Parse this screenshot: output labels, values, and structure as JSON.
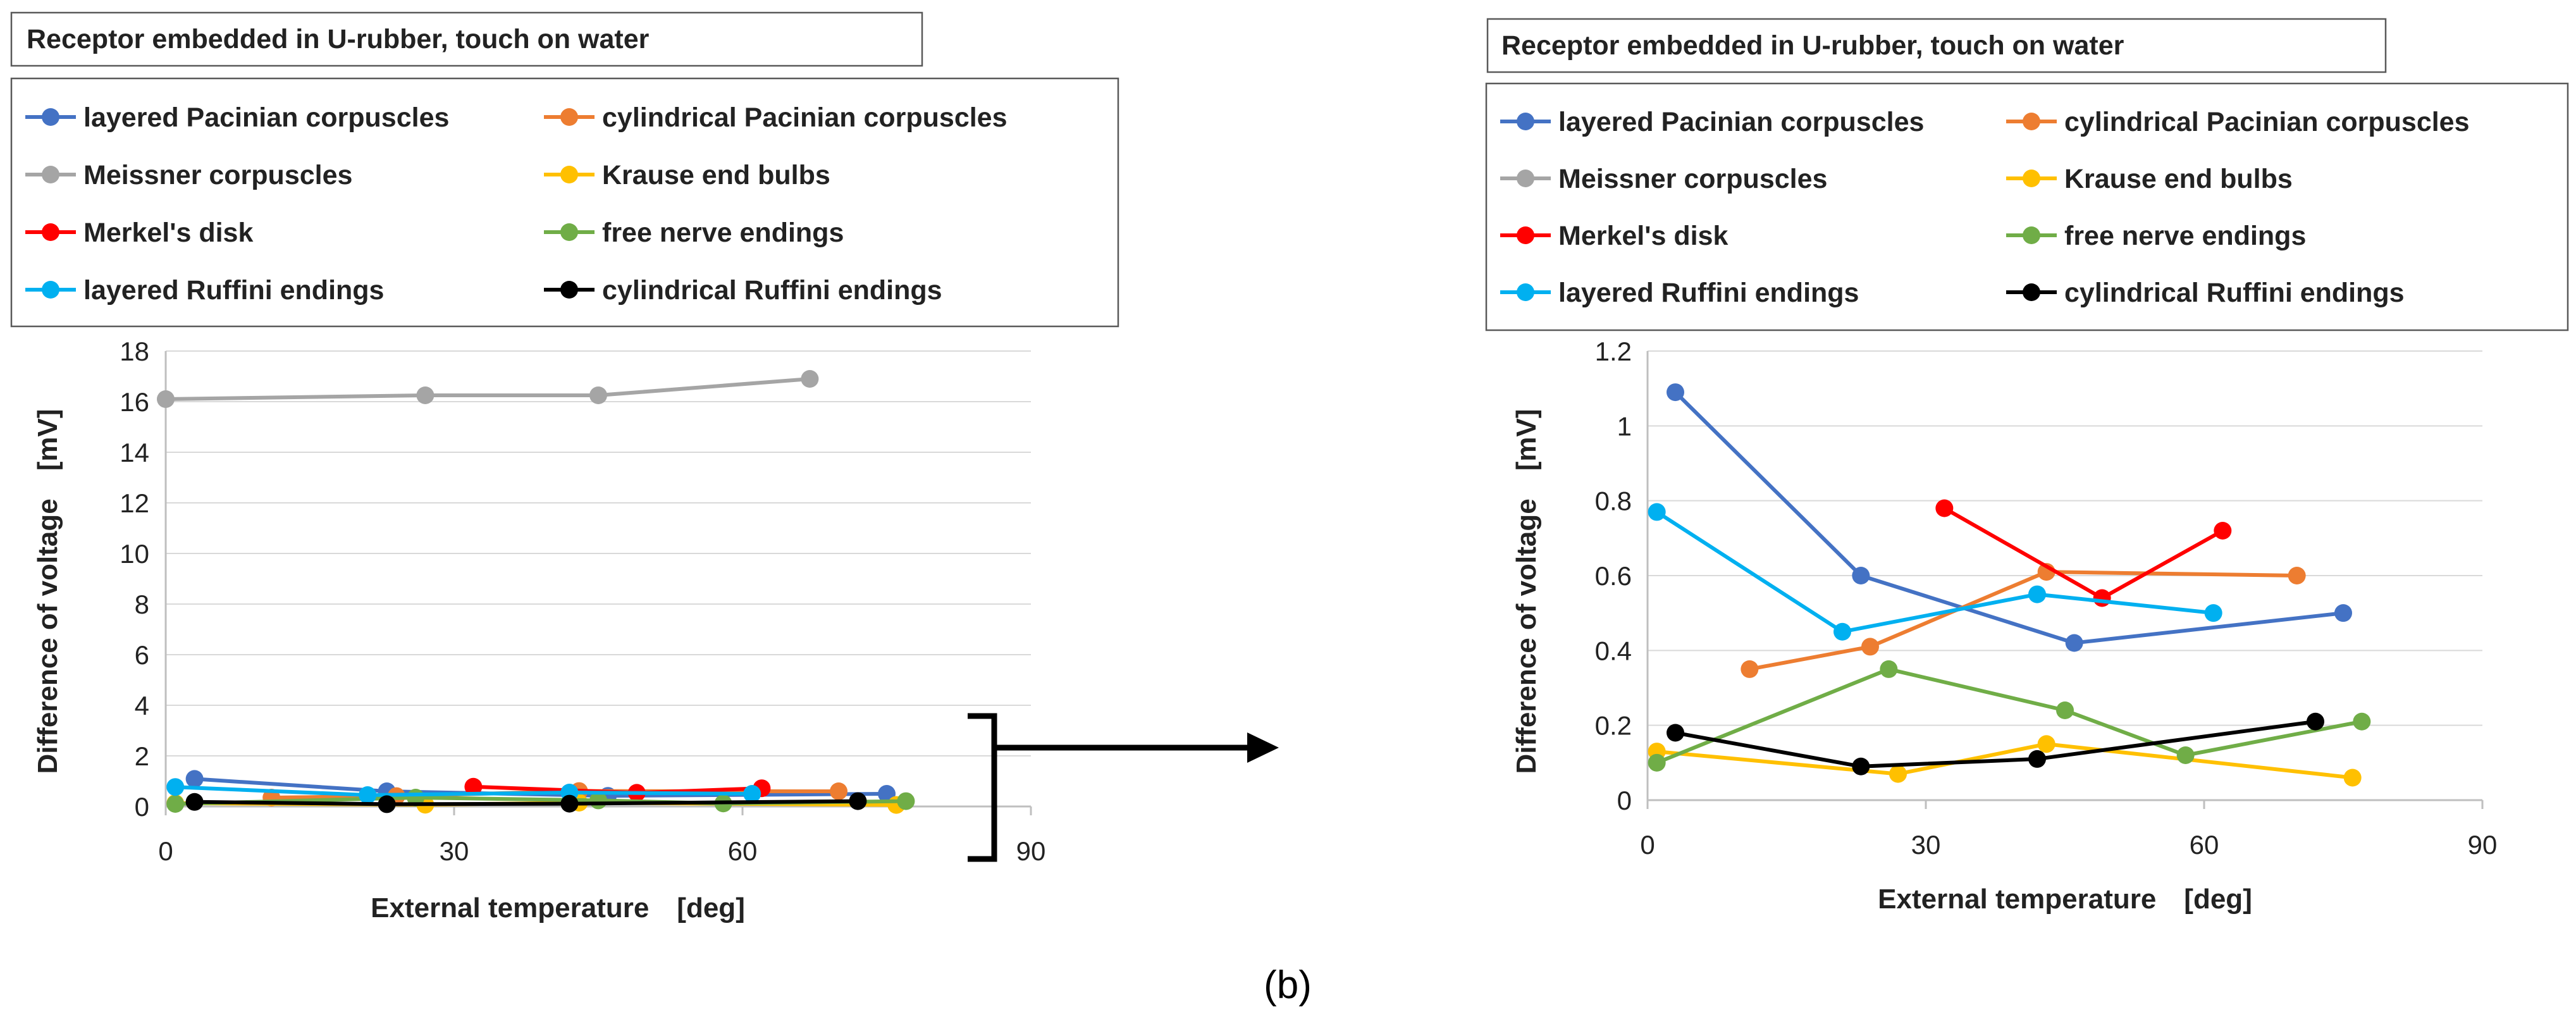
{
  "caption": "(b)",
  "colors": {
    "layered_pacinian": "#4472C4",
    "cylindrical_pacinian": "#ED7D31",
    "meissner": "#A5A5A5",
    "krause": "#FFC000",
    "merkel": "#FF0000",
    "free_nerve": "#70AD47",
    "layered_ruffini": "#00B0F0",
    "cylindrical_ruffini": "#000000"
  },
  "chart_data": [
    {
      "type": "line",
      "title": "Receptor embedded in U-rubber, touch on water",
      "xlabel": "External temperature　[deg]",
      "ylabel": "Difference of voltage　[mV]",
      "xlim": [
        0,
        90
      ],
      "ylim": [
        0,
        18
      ],
      "xticks": [
        "0",
        "30",
        "60",
        "90"
      ],
      "yticks": [
        "0",
        "2",
        "4",
        "6",
        "8",
        "10",
        "12",
        "14",
        "16",
        "18"
      ],
      "legend_position": "top",
      "series": [
        {
          "name": "layered Pacinian corpuscles",
          "color": "#4472C4",
          "x": [
            3,
            23,
            46,
            75
          ],
          "y": [
            1.09,
            0.6,
            0.42,
            0.5
          ]
        },
        {
          "name": "cylindrical Pacinian corpuscles",
          "color": "#ED7D31",
          "x": [
            11,
            24,
            43,
            70
          ],
          "y": [
            0.35,
            0.41,
            0.61,
            0.6
          ]
        },
        {
          "name": "Meissner corpuscles",
          "color": "#A5A5A5",
          "x": [
            0,
            27,
            45,
            67
          ],
          "y": [
            16.1,
            16.25,
            16.25,
            16.9
          ]
        },
        {
          "name": "Krause end bulbs",
          "color": "#FFC000",
          "x": [
            1,
            27,
            43,
            76
          ],
          "y": [
            0.13,
            0.07,
            0.15,
            0.06
          ]
        },
        {
          "name": "Merkel's disk",
          "color": "#FF0000",
          "x": [
            32,
            49,
            62
          ],
          "y": [
            0.78,
            0.54,
            0.72
          ]
        },
        {
          "name": "free nerve endings",
          "color": "#70AD47",
          "x": [
            1,
            26,
            45,
            58,
            77
          ],
          "y": [
            0.1,
            0.35,
            0.24,
            0.12,
            0.21
          ]
        },
        {
          "name": "layered Ruffini endings",
          "color": "#00B0F0",
          "x": [
            1,
            21,
            42,
            61
          ],
          "y": [
            0.77,
            0.45,
            0.55,
            0.5
          ]
        },
        {
          "name": "cylindrical Ruffini endings",
          "color": "#000000",
          "x": [
            3,
            23,
            42,
            72
          ],
          "y": [
            0.18,
            0.09,
            0.11,
            0.21
          ]
        }
      ]
    },
    {
      "type": "line",
      "title": "Receptor embedded in U-rubber, touch on water",
      "xlabel": "External temperature　[deg]",
      "ylabel": "Difference of voltage　[mV]",
      "xlim": [
        0,
        90
      ],
      "ylim": [
        0,
        1.2
      ],
      "xticks": [
        "0",
        "30",
        "60",
        "90"
      ],
      "yticks": [
        "0",
        "0.2",
        "0.4",
        "0.6",
        "0.8",
        "1",
        "1.2"
      ],
      "legend_position": "top",
      "series": [
        {
          "name": "layered Pacinian corpuscles",
          "color": "#4472C4",
          "x": [
            3,
            23,
            46,
            75
          ],
          "y": [
            1.09,
            0.6,
            0.42,
            0.5
          ]
        },
        {
          "name": "cylindrical Pacinian corpuscles",
          "color": "#ED7D31",
          "x": [
            11,
            24,
            43,
            70
          ],
          "y": [
            0.35,
            0.41,
            0.61,
            0.6
          ]
        },
        {
          "name": "Meissner corpuscles",
          "color": "#A5A5A5",
          "x": [],
          "y": []
        },
        {
          "name": "Krause end bulbs",
          "color": "#FFC000",
          "x": [
            1,
            27,
            43,
            76
          ],
          "y": [
            0.13,
            0.07,
            0.15,
            0.06
          ]
        },
        {
          "name": "Merkel's disk",
          "color": "#FF0000",
          "x": [
            32,
            49,
            62
          ],
          "y": [
            0.78,
            0.54,
            0.72
          ]
        },
        {
          "name": "free nerve endings",
          "color": "#70AD47",
          "x": [
            1,
            26,
            45,
            58,
            77
          ],
          "y": [
            0.1,
            0.35,
            0.24,
            0.12,
            0.21
          ]
        },
        {
          "name": "layered Ruffini endings",
          "color": "#00B0F0",
          "x": [
            1,
            21,
            42,
            61
          ],
          "y": [
            0.77,
            0.45,
            0.55,
            0.5
          ]
        },
        {
          "name": "cylindrical Ruffini endings",
          "color": "#000000",
          "x": [
            3,
            23,
            42,
            72
          ],
          "y": [
            0.18,
            0.09,
            0.11,
            0.21
          ]
        }
      ]
    }
  ]
}
